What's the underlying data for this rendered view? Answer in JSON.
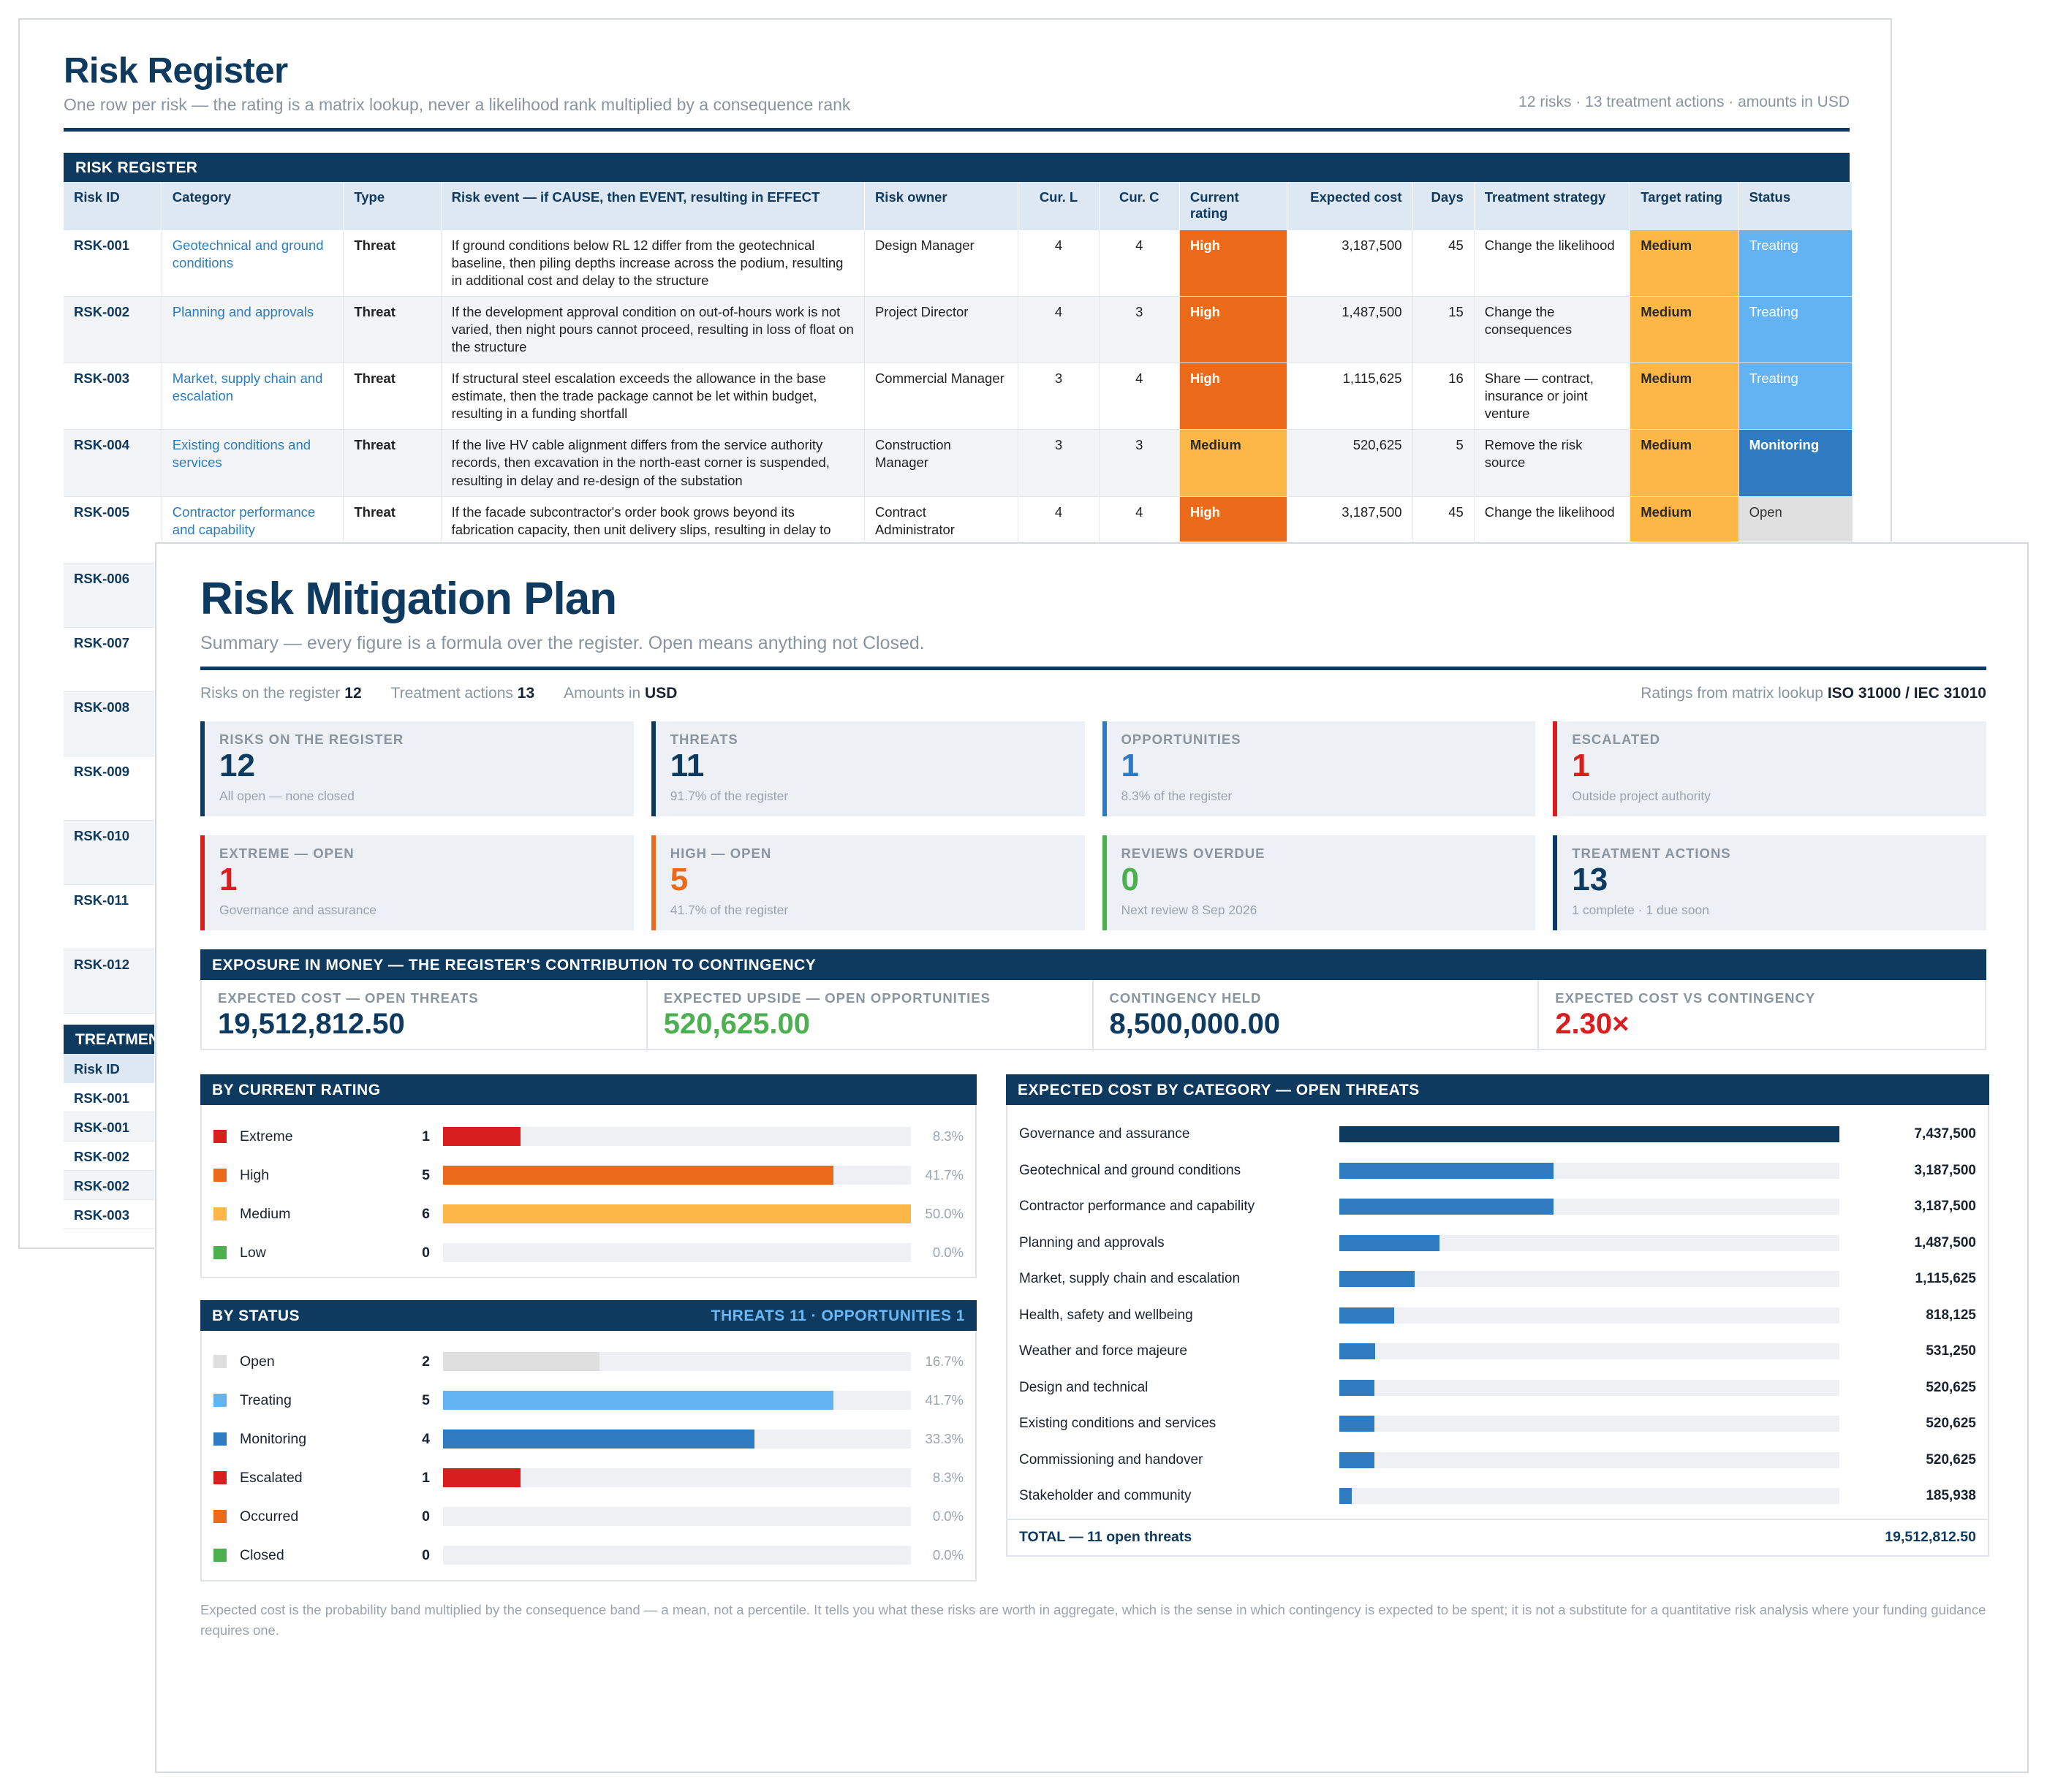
{
  "register": {
    "title": "Risk Register",
    "subtitle": "One row per risk — the rating is a matrix lookup, never a likelihood rank multiplied by a consequence rank",
    "meta": "12 risks · 13 treatment actions · amounts in USD",
    "section_label": "RISK REGISTER",
    "columns": [
      "Risk ID",
      "Category",
      "Type",
      "Risk event — if CAUSE, then EVENT, resulting in EFFECT",
      "Risk owner",
      "Cur. L",
      "Cur. C",
      "Current rating",
      "Expected cost",
      "Days",
      "Treatment strategy",
      "Target rating",
      "Status"
    ],
    "rows": [
      {
        "id": "RSK-001",
        "category": "Geotechnical and ground conditions",
        "type": "Threat",
        "event": "If ground conditions below RL 12 differ from the geotechnical baseline, then piling depths increase across the podium, resulting in additional cost and delay to the structure",
        "owner": "Design Manager",
        "l": "4",
        "c": "4",
        "rating": "High",
        "cost": "3,187,500",
        "days": "45",
        "strategy": "Change the likelihood",
        "target": "Medium",
        "status": "Treating"
      },
      {
        "id": "RSK-002",
        "category": "Planning and approvals",
        "type": "Threat",
        "event": "If the development approval condition on out-of-hours work is not varied, then night pours cannot proceed, resulting in loss of float on the structure",
        "owner": "Project Director",
        "l": "4",
        "c": "3",
        "rating": "High",
        "cost": "1,487,500",
        "days": "15",
        "strategy": "Change the consequences",
        "target": "Medium",
        "status": "Treating"
      },
      {
        "id": "RSK-003",
        "category": "Market, supply chain and escalation",
        "type": "Threat",
        "event": "If structural steel escalation exceeds the allowance in the base estimate, then the trade package cannot be let within budget, resulting in a funding shortfall",
        "owner": "Commercial Manager",
        "l": "3",
        "c": "4",
        "rating": "High",
        "cost": "1,115,625",
        "days": "16",
        "strategy": "Share — contract, insurance or joint venture",
        "target": "Medium",
        "status": "Treating"
      },
      {
        "id": "RSK-004",
        "category": "Existing conditions and services",
        "type": "Threat",
        "event": "If the live HV cable alignment differs from the service authority records, then excavation in the north-east corner is suspended, resulting in delay and re-design of the substation",
        "owner": "Construction Manager",
        "l": "3",
        "c": "3",
        "rating": "Medium",
        "cost": "520,625",
        "days": "5",
        "strategy": "Remove the risk source",
        "target": "Medium",
        "status": "Monitoring"
      },
      {
        "id": "RSK-005",
        "category": "Contractor performance and capability",
        "type": "Threat",
        "event": "If the facade subcontractor's order book grows beyond its fabrication capacity, then unit delivery slips, resulting in delay to building enclosure",
        "owner": "Contract Administrator",
        "l": "4",
        "c": "4",
        "rating": "High",
        "cost": "3,187,500",
        "days": "45",
        "strategy": "Change the likelihood",
        "target": "Medium",
        "status": "Open"
      },
      {
        "id": "RSK-006"
      },
      {
        "id": "RSK-007"
      },
      {
        "id": "RSK-008"
      },
      {
        "id": "RSK-009"
      },
      {
        "id": "RSK-010"
      },
      {
        "id": "RSK-011"
      },
      {
        "id": "RSK-012"
      }
    ],
    "treatment_label": "TREATMENTS",
    "treatment_header": "Risk ID",
    "treatment_rows": [
      "RSK-001",
      "RSK-001",
      "RSK-002",
      "RSK-002",
      "RSK-003"
    ]
  },
  "plan": {
    "title": "Risk Mitigation Plan",
    "subtitle": "Summary — every figure is a formula over the register. Open means anything not Closed.",
    "meta": {
      "risks_label": "Risks on the register",
      "risks": "12",
      "actions_label": "Treatment actions",
      "actions": "13",
      "amounts_label": "Amounts in",
      "amounts": "USD",
      "ratings_label": "Ratings from matrix lookup",
      "ratings": "ISO 31000 / IEC 31010"
    },
    "kpis": [
      {
        "label": "Risks on the register",
        "value": "12",
        "note": "All open — none closed",
        "color": "#0e3a60"
      },
      {
        "label": "Threats",
        "value": "11",
        "note": "91.7% of the register",
        "color": "#0e3a60"
      },
      {
        "label": "Opportunities",
        "value": "1",
        "note": "8.3% of the register",
        "color": "#2f7bc1"
      },
      {
        "label": "Escalated",
        "value": "1",
        "note": "Outside project authority",
        "color": "#d81e1e"
      },
      {
        "label": "Extreme — open",
        "value": "1",
        "note": "Governance and assurance",
        "color": "#d81e1e"
      },
      {
        "label": "High — open",
        "value": "5",
        "note": "41.7% of the register",
        "color": "#ec6b1b"
      },
      {
        "label": "Reviews overdue",
        "value": "0",
        "note": "Next review 8 Sep 2026",
        "color": "#4caf50"
      },
      {
        "label": "Treatment actions",
        "value": "13",
        "note": "1 complete · 1 due soon",
        "color": "#0e3a60"
      }
    ],
    "exposure": {
      "title": "EXPOSURE IN MONEY — THE REGISTER'S CONTRIBUTION TO CONTINGENCY",
      "cells": [
        {
          "label": "EXPECTED COST — OPEN THREATS",
          "value": "19,512,812.50",
          "color": "#0e3a60"
        },
        {
          "label": "EXPECTED UPSIDE — OPEN OPPORTUNITIES",
          "value": "520,625.00",
          "color": "#4caf50"
        },
        {
          "label": "CONTINGENCY HELD",
          "value": "8,500,000.00",
          "color": "#0e3a60"
        },
        {
          "label": "EXPECTED COST VS CONTINGENCY",
          "value": "2.30×",
          "color": "#d81e1e"
        }
      ]
    },
    "by_rating": {
      "title": "BY CURRENT RATING",
      "rows": [
        {
          "name": "Extreme",
          "count": "1",
          "fraction": 0.083,
          "pct": "8.3%",
          "color": "#d81e1e"
        },
        {
          "name": "High",
          "count": "5",
          "fraction": 0.417,
          "pct": "41.7%",
          "color": "#ec6b1b"
        },
        {
          "name": "Medium",
          "count": "6",
          "fraction": 0.5,
          "pct": "50.0%",
          "color": "#fdb747"
        },
        {
          "name": "Low",
          "count": "0",
          "fraction": 0,
          "pct": "0.0%",
          "color": "#4caf50"
        }
      ]
    },
    "by_status": {
      "title": "BY STATUS",
      "right": "THREATS 11 · OPPORTUNITIES 1",
      "rows": [
        {
          "name": "Open",
          "count": "2",
          "fraction": 0.167,
          "pct": "16.7%",
          "color": "#dedede"
        },
        {
          "name": "Treating",
          "count": "5",
          "fraction": 0.417,
          "pct": "41.7%",
          "color": "#63b3f2"
        },
        {
          "name": "Monitoring",
          "count": "4",
          "fraction": 0.333,
          "pct": "33.3%",
          "color": "#2f7bc1"
        },
        {
          "name": "Escalated",
          "count": "1",
          "fraction": 0.083,
          "pct": "8.3%",
          "color": "#d81e1e"
        },
        {
          "name": "Occurred",
          "count": "0",
          "fraction": 0,
          "pct": "0.0%",
          "color": "#ec6b1b"
        },
        {
          "name": "Closed",
          "count": "0",
          "fraction": 0,
          "pct": "0.0%",
          "color": "#4caf50"
        }
      ]
    },
    "by_category": {
      "title": "EXPECTED COST BY CATEGORY — OPEN THREATS",
      "rows": [
        {
          "name": "Governance and assurance",
          "value": 7437500,
          "label": "7,437,500"
        },
        {
          "name": "Geotechnical and ground conditions",
          "value": 3187500,
          "label": "3,187,500"
        },
        {
          "name": "Contractor performance and capability",
          "value": 3187500,
          "label": "3,187,500"
        },
        {
          "name": "Planning and approvals",
          "value": 1487500,
          "label": "1,487,500"
        },
        {
          "name": "Market, supply chain and escalation",
          "value": 1115625,
          "label": "1,115,625"
        },
        {
          "name": "Health, safety and wellbeing",
          "value": 818125,
          "label": "818,125"
        },
        {
          "name": "Weather and force majeure",
          "value": 531250,
          "label": "531,250"
        },
        {
          "name": "Design and technical",
          "value": 520625,
          "label": "520,625"
        },
        {
          "name": "Existing conditions and services",
          "value": 520625,
          "label": "520,625"
        },
        {
          "name": "Commissioning and handover",
          "value": 520625,
          "label": "520,625"
        },
        {
          "name": "Stakeholder and community",
          "value": 185938,
          "label": "185,938"
        }
      ],
      "total_label": "TOTAL — 11 open threats",
      "total_value": "19,512,812.50"
    },
    "footnote": "Expected cost is the probability band multiplied by the consequence band — a mean, not a percentile. It tells you what these risks are worth in aggregate, which is the sense in which contingency is expected to be spent; it is not a substitute for a quantitative risk analysis where your funding guidance requires one."
  }
}
